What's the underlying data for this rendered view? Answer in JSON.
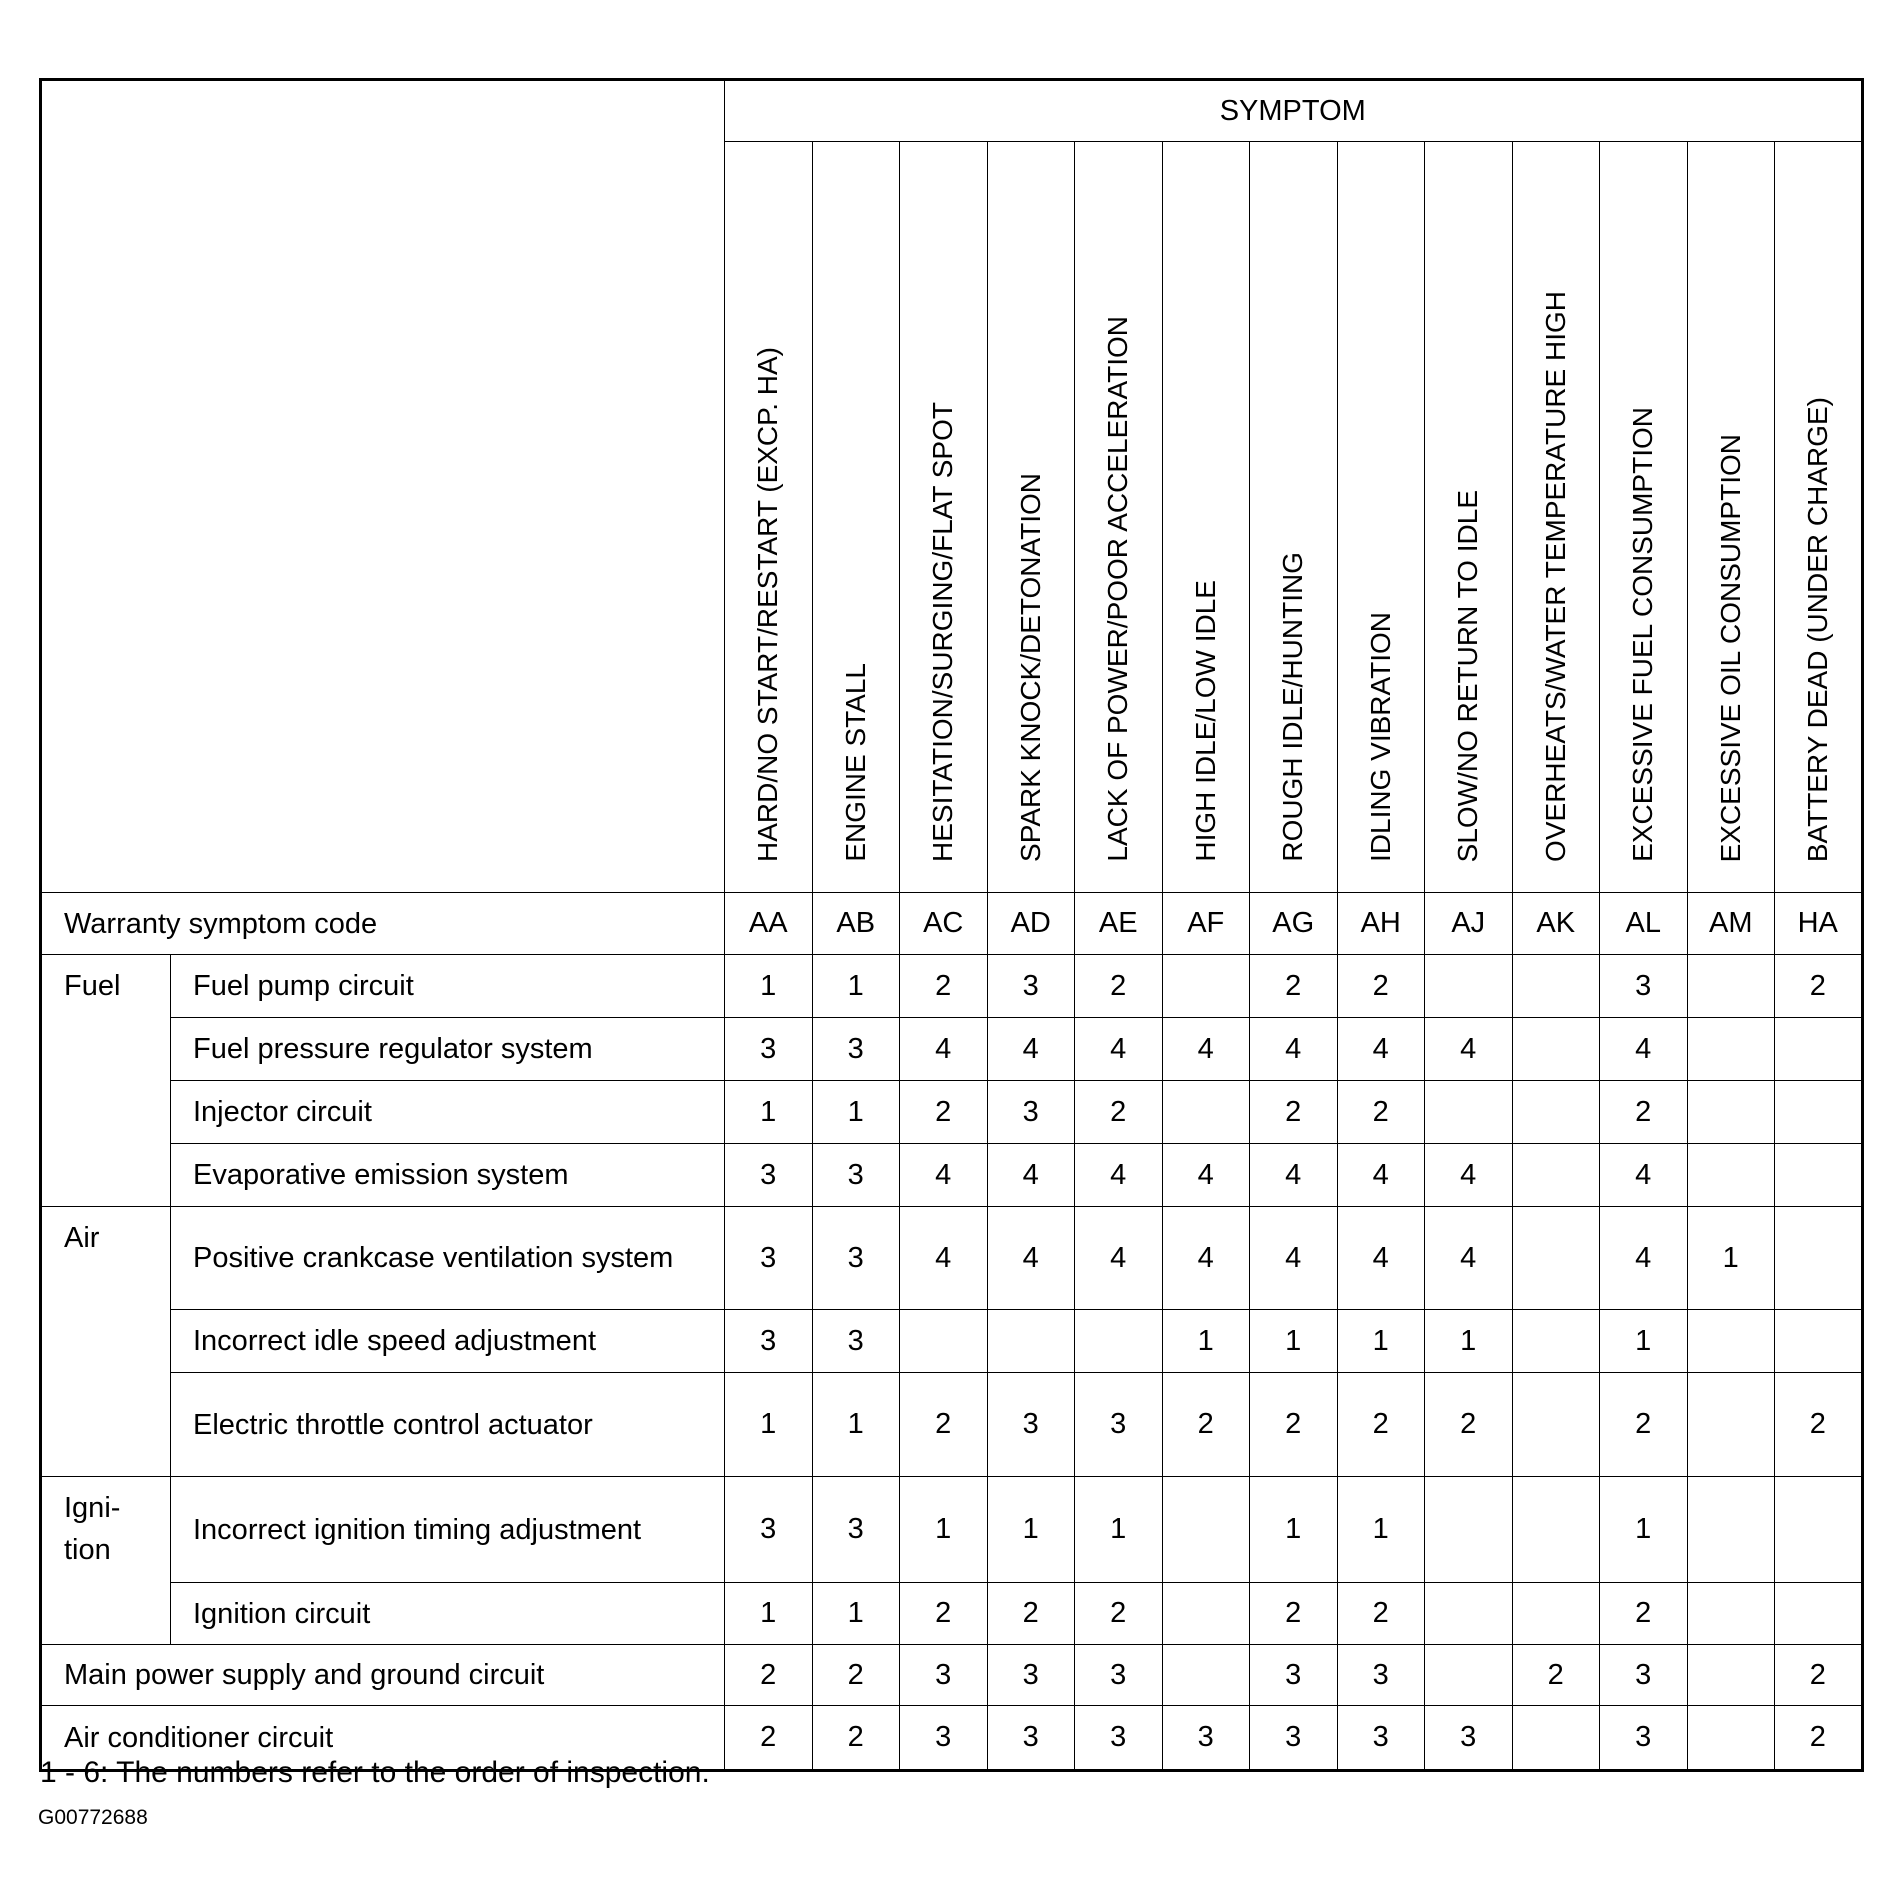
{
  "header": {
    "symptom": "SYMPTOM"
  },
  "columns": [
    {
      "name": "HARD/NO START/RESTART (EXCP. HA)",
      "code": "AA"
    },
    {
      "name": "ENGINE STALL",
      "code": "AB"
    },
    {
      "name": "HESITATION/SURGING/FLAT SPOT",
      "code": "AC"
    },
    {
      "name": "SPARK KNOCK/DETONATION",
      "code": "AD"
    },
    {
      "name": "LACK OF POWER/POOR ACCELERATION",
      "code": "AE"
    },
    {
      "name": "HIGH IDLE/LOW IDLE",
      "code": "AF"
    },
    {
      "name": "ROUGH IDLE/HUNTING",
      "code": "AG"
    },
    {
      "name": "IDLING VIBRATION",
      "code": "AH"
    },
    {
      "name": "SLOW/NO RETURN TO IDLE",
      "code": "AJ"
    },
    {
      "name": "OVERHEATS/WATER TEMPERATURE HIGH",
      "code": "AK"
    },
    {
      "name": "EXCESSIVE FUEL CONSUMPTION",
      "code": "AL"
    },
    {
      "name": "EXCESSIVE OIL CONSUMPTION",
      "code": "AM"
    },
    {
      "name": "BATTERY DEAD (UNDER CHARGE)",
      "code": "HA"
    }
  ],
  "warranty_label": "Warranty symptom code",
  "rows": [
    {
      "group": "Fuel",
      "item": "Fuel pump circuit",
      "values": [
        "1",
        "1",
        "2",
        "3",
        "2",
        "",
        "2",
        "2",
        "",
        "",
        "3",
        "",
        "2"
      ]
    },
    {
      "item": "Fuel pressure regulator system",
      "values": [
        "3",
        "3",
        "4",
        "4",
        "4",
        "4",
        "4",
        "4",
        "4",
        "",
        "4",
        "",
        ""
      ]
    },
    {
      "item": "Injector circuit",
      "values": [
        "1",
        "1",
        "2",
        "3",
        "2",
        "",
        "2",
        "2",
        "",
        "",
        "2",
        "",
        ""
      ]
    },
    {
      "item": "Evaporative emission system",
      "values": [
        "3",
        "3",
        "4",
        "4",
        "4",
        "4",
        "4",
        "4",
        "4",
        "",
        "4",
        "",
        ""
      ]
    },
    {
      "group": "Air",
      "item": "Positive crankcase ventilation system",
      "values": [
        "3",
        "3",
        "4",
        "4",
        "4",
        "4",
        "4",
        "4",
        "4",
        "",
        "4",
        "1",
        ""
      ]
    },
    {
      "item": "Incorrect idle speed adjustment",
      "values": [
        "3",
        "3",
        "",
        "",
        "",
        "1",
        "1",
        "1",
        "1",
        "",
        "1",
        "",
        ""
      ]
    },
    {
      "item": "Electric throttle control actuator",
      "values": [
        "1",
        "1",
        "2",
        "3",
        "3",
        "2",
        "2",
        "2",
        "2",
        "",
        "2",
        "",
        "2"
      ]
    },
    {
      "group": "Igni-\ntion",
      "item": "Incorrect ignition timing adjustment",
      "values": [
        "3",
        "3",
        "1",
        "1",
        "1",
        "",
        "1",
        "1",
        "",
        "",
        "1",
        "",
        ""
      ]
    },
    {
      "item": "Ignition circuit",
      "values": [
        "1",
        "1",
        "2",
        "2",
        "2",
        "",
        "2",
        "2",
        "",
        "",
        "2",
        "",
        ""
      ]
    },
    {
      "item": "Main power supply and ground circuit",
      "full": true,
      "values": [
        "2",
        "2",
        "3",
        "3",
        "3",
        "",
        "3",
        "3",
        "",
        "2",
        "3",
        "",
        "2"
      ]
    },
    {
      "item": "Air conditioner circuit",
      "full": true,
      "values": [
        "2",
        "2",
        "3",
        "3",
        "3",
        "3",
        "3",
        "3",
        "3",
        "",
        "3",
        "",
        "2"
      ]
    }
  ],
  "footnote": "1 - 6: The numbers refer to the order of inspection.",
  "figure_id": "G00772688"
}
